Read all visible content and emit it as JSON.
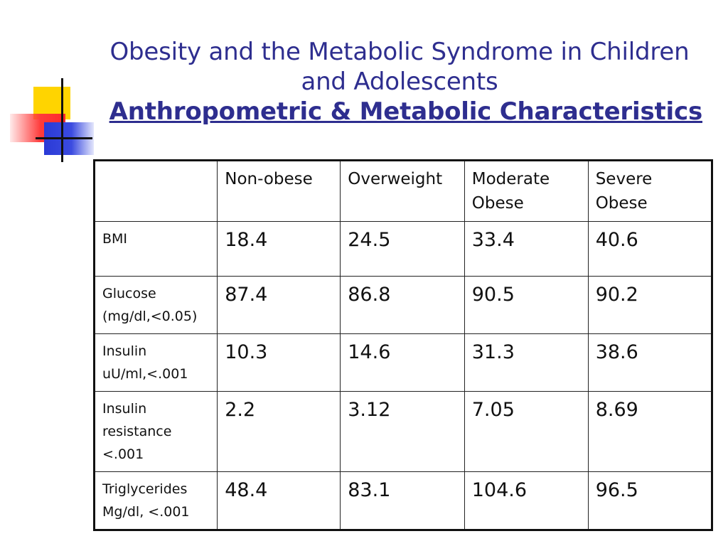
{
  "title": {
    "line1": "Obesity and the Metabolic Syndrome in Children",
    "line2": "and Adolescents",
    "subtitle": "Anthropometric & Metabolic Characteristics"
  },
  "table": {
    "headers": [
      "",
      "Non-obese",
      "Overweight",
      "Moderate Obese",
      "Severe Obese"
    ],
    "header_lines": {
      "moderate": [
        "Moderate",
        "Obese"
      ],
      "severe": [
        "Severe",
        "Obese"
      ]
    },
    "rows": [
      {
        "label_lines": [
          "BMI"
        ],
        "values": [
          "18.4",
          "24.5",
          "33.4",
          "40.6"
        ]
      },
      {
        "label_lines": [
          "Glucose",
          "(mg/dl,<0.05)"
        ],
        "values": [
          "87.4",
          "86.8",
          "90.5",
          "90.2"
        ]
      },
      {
        "label_lines": [
          "Insulin",
          "uU/ml,<.001"
        ],
        "values": [
          "10.3",
          "14.6",
          "31.3",
          "38.6"
        ]
      },
      {
        "label_lines": [
          "Insulin",
          "resistance",
          "<.001"
        ],
        "values": [
          "2.2",
          "3.12",
          "7.05",
          "8.69"
        ]
      },
      {
        "label_lines": [
          "Triglycerides",
          "Mg/dl, <.001"
        ],
        "values": [
          "48.4",
          "83.1",
          "104.6",
          "96.5"
        ]
      }
    ]
  },
  "colors": {
    "title": "#2e2e8f",
    "deco_yellow": "#ffd400",
    "deco_red": "#ff2a2a",
    "deco_blue": "#2a3ad6"
  }
}
